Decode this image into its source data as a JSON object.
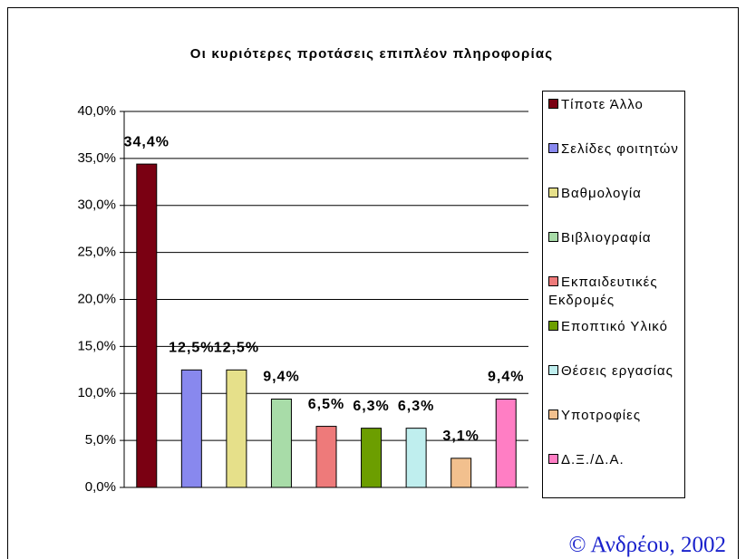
{
  "chart_data": {
    "type": "bar",
    "title": "Οι κυριότερες προτάσεις επιπλέον πληροφορίας",
    "categories": [
      "Τίποτε Άλλο",
      "Σελίδες φοιτητών",
      "Βαθμολογία",
      "Βιβλιογραφία",
      "Εκπαιδευτικές Εκδρομές",
      "Εποπτικό Υλικό",
      "Θέσεις εργασίας",
      "Υποτροφίες",
      "Δ.Ξ./Δ.Α."
    ],
    "values": [
      34.4,
      12.5,
      12.5,
      9.4,
      6.5,
      6.3,
      6.3,
      3.1,
      9.4
    ],
    "value_labels": [
      "34,4%",
      "12,5%",
      "12,5%",
      "9,4%",
      "6,5%",
      "6,3%",
      "6,3%",
      "3,1%",
      "9,4%"
    ],
    "colors": [
      "#7a0012",
      "#8888ee",
      "#e6e08a",
      "#a8dca8",
      "#ee7a7a",
      "#6c9e00",
      "#bfeeee",
      "#f2c08e",
      "#ff7ec4"
    ],
    "ylim": [
      0,
      40
    ],
    "yticks": [
      {
        "value": 0,
        "label": "0,0%"
      },
      {
        "value": 5,
        "label": "5,0%"
      },
      {
        "value": 10,
        "label": "10,0%"
      },
      {
        "value": 15,
        "label": "15,0%"
      },
      {
        "value": 20,
        "label": "20,0%"
      },
      {
        "value": 25,
        "label": "25,0%"
      },
      {
        "value": 30,
        "label": "30,0%"
      },
      {
        "value": 35,
        "label": "35,0%"
      },
      {
        "value": 40,
        "label": "40,0%"
      }
    ],
    "grid": true,
    "legend": "right",
    "source": "© Ανδρέου, 2002"
  }
}
